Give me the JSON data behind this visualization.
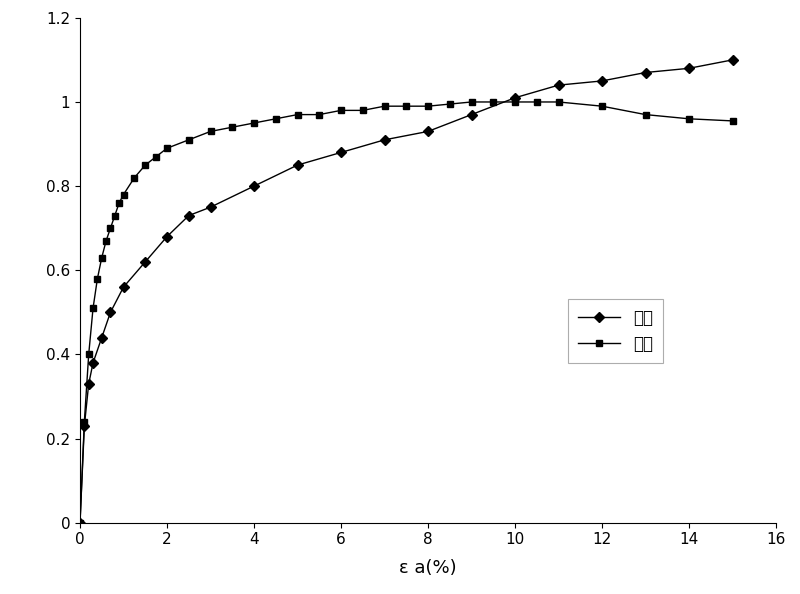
{
  "simulated_x": [
    0,
    0.1,
    0.2,
    0.3,
    0.5,
    0.7,
    1.0,
    1.5,
    2.0,
    2.5,
    3.0,
    4.0,
    5.0,
    6.0,
    7.0,
    8.0,
    9.0,
    10.0,
    11.0,
    12.0,
    13.0,
    14.0,
    15.0
  ],
  "simulated_y": [
    0,
    0.23,
    0.33,
    0.38,
    0.44,
    0.5,
    0.56,
    0.62,
    0.68,
    0.73,
    0.75,
    0.8,
    0.85,
    0.88,
    0.91,
    0.93,
    0.97,
    1.01,
    1.04,
    1.05,
    1.07,
    1.08,
    1.1
  ],
  "experiment_x": [
    0,
    0.1,
    0.2,
    0.3,
    0.4,
    0.5,
    0.6,
    0.7,
    0.8,
    0.9,
    1.0,
    1.25,
    1.5,
    1.75,
    2.0,
    2.5,
    3.0,
    3.5,
    4.0,
    4.5,
    5.0,
    5.5,
    6.0,
    6.5,
    7.0,
    7.5,
    8.0,
    8.5,
    9.0,
    9.5,
    10.0,
    10.5,
    11.0,
    12.0,
    13.0,
    14.0,
    15.0
  ],
  "experiment_y": [
    0,
    0.24,
    0.4,
    0.51,
    0.58,
    0.63,
    0.67,
    0.7,
    0.73,
    0.76,
    0.78,
    0.82,
    0.85,
    0.87,
    0.89,
    0.91,
    0.93,
    0.94,
    0.95,
    0.96,
    0.97,
    0.97,
    0.98,
    0.98,
    0.99,
    0.99,
    0.99,
    0.995,
    1.0,
    1.0,
    1.0,
    1.0,
    1.0,
    0.99,
    0.97,
    0.96,
    0.955
  ],
  "xlabel": "ε a(%)",
  "xlim": [
    0,
    16
  ],
  "ylim": [
    0,
    1.2
  ],
  "xticks": [
    0,
    2,
    4,
    6,
    8,
    10,
    12,
    14,
    16
  ],
  "ytick_vals": [
    0,
    0.2,
    0.4,
    0.6,
    0.8,
    1.0,
    1.2
  ],
  "ytick_labels": [
    "0",
    "0.2",
    "0.4",
    "0.6",
    "0.8",
    "1",
    "1.2"
  ],
  "legend_labels": [
    "模拟",
    "试验"
  ],
  "line_color": "#000000",
  "background_color": "#ffffff"
}
